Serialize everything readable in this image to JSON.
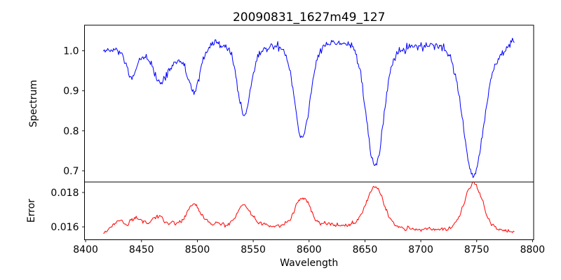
{
  "figure": {
    "title": "20090831_1627m49_127",
    "background": "#ffffff"
  },
  "panels": {
    "spectrum": {
      "ylabel": "Spectrum",
      "line_color": "#0000ff",
      "xlim": [
        8399,
        8801
      ],
      "ylim": [
        0.672,
        1.064
      ],
      "yticks": [
        {
          "value": 0.7,
          "label": "0.7"
        },
        {
          "value": 0.8,
          "label": "0.8"
        },
        {
          "value": 0.9,
          "label": "0.9"
        },
        {
          "value": 1.0,
          "label": "1.0"
        }
      ]
    },
    "error": {
      "ylabel": "Error",
      "xlabel": "Wavelength",
      "line_color": "#ff0000",
      "xlim": [
        8399,
        8801
      ],
      "ylim": [
        0.01525,
        0.01861
      ],
      "yticks": [
        {
          "value": 0.016,
          "label": "0.016"
        },
        {
          "value": 0.018,
          "label": "0.018"
        }
      ],
      "xticks": [
        {
          "value": 8400,
          "label": "8400"
        },
        {
          "value": 8450,
          "label": "8450"
        },
        {
          "value": 8500,
          "label": "8500"
        },
        {
          "value": 8550,
          "label": "8550"
        },
        {
          "value": 8600,
          "label": "8600"
        },
        {
          "value": 8650,
          "label": "8650"
        },
        {
          "value": 8700,
          "label": "8700"
        },
        {
          "value": 8750,
          "label": "8750"
        },
        {
          "value": 8800,
          "label": "8800"
        }
      ]
    }
  },
  "chart_data": [
    {
      "type": "line",
      "name": "spectrum",
      "title": "20090831_1627m49_127",
      "xlabel": "Wavelength",
      "ylabel": "Spectrum",
      "color": "#0000ff",
      "xlim": [
        8399,
        8801
      ],
      "ylim": [
        0.672,
        1.064
      ],
      "x_start": 8416,
      "x_end": 8784,
      "x_step": 0.75,
      "description": "Noisy stellar spectrum, continuum near 1.0 with broad Paschen-series absorption dips of increasing depth toward 8750",
      "model": {
        "continuum_anchors": [
          [
            8416,
            1.0
          ],
          [
            8427,
            1.0
          ],
          [
            8450,
            0.988
          ],
          [
            8458,
            0.985
          ],
          [
            8480,
            0.972
          ],
          [
            8490,
            0.978
          ],
          [
            8508,
            1.0
          ],
          [
            8516,
            1.018
          ],
          [
            8524,
            1.012
          ],
          [
            8538,
            0.995
          ],
          [
            8552,
            0.995
          ],
          [
            8566,
            1.012
          ],
          [
            8576,
            1.008
          ],
          [
            8584,
            1.0
          ],
          [
            8608,
            1.005
          ],
          [
            8618,
            1.02
          ],
          [
            8628,
            1.022
          ],
          [
            8640,
            1.015
          ],
          [
            8652,
            1.0
          ],
          [
            8668,
            1.0
          ],
          [
            8684,
            1.005
          ],
          [
            8695,
            1.01
          ],
          [
            8708,
            1.013
          ],
          [
            8722,
            1.008
          ],
          [
            8735,
            0.995
          ],
          [
            8745,
            0.99
          ],
          [
            8760,
            0.99
          ],
          [
            8770,
            0.995
          ],
          [
            8778,
            1.005
          ],
          [
            8784,
            1.035
          ]
        ],
        "absorption_lines": [
          {
            "center": 8441,
            "depth": 0.065,
            "sigma": 4.0
          },
          {
            "center": 8467,
            "depth": 0.06,
            "sigma": 5.5
          },
          {
            "center": 8497,
            "depth": 0.095,
            "sigma": 4.5
          },
          {
            "center": 8542,
            "depth": 0.155,
            "sigma": 5.5
          },
          {
            "center": 8594,
            "depth": 0.22,
            "sigma": 6.5
          },
          {
            "center": 8659,
            "depth": 0.29,
            "sigma": 7.5
          },
          {
            "center": 8747,
            "depth": 0.3,
            "sigma": 9.0
          }
        ],
        "noise_sigma": 0.005,
        "noise_persistence": 0.0,
        "seed": 12345
      },
      "sampled_points": [
        [
          8420,
          1.0
        ],
        [
          8430,
          0.985
        ],
        [
          8440,
          0.928
        ],
        [
          8450,
          0.975
        ],
        [
          8458,
          0.978
        ],
        [
          8467,
          0.924
        ],
        [
          8475,
          0.935
        ],
        [
          8483,
          0.965
        ],
        [
          8490,
          0.97
        ],
        [
          8498,
          0.906
        ],
        [
          8507,
          0.965
        ],
        [
          8515,
          1.015
        ],
        [
          8525,
          1.01
        ],
        [
          8535,
          0.96
        ],
        [
          8544,
          0.848
        ],
        [
          8555,
          0.935
        ],
        [
          8565,
          1.0
        ],
        [
          8575,
          1.008
        ],
        [
          8585,
          0.975
        ],
        [
          8592,
          0.88
        ],
        [
          8596,
          0.788
        ],
        [
          8605,
          0.9
        ],
        [
          8615,
          1.0
        ],
        [
          8625,
          1.02
        ],
        [
          8635,
          1.01
        ],
        [
          8645,
          0.965
        ],
        [
          8653,
          0.85
        ],
        [
          8660,
          0.728
        ],
        [
          8670,
          0.845
        ],
        [
          8680,
          0.95
        ],
        [
          8690,
          1.0
        ],
        [
          8700,
          1.01
        ],
        [
          8710,
          1.012
        ],
        [
          8720,
          1.0
        ],
        [
          8730,
          0.945
        ],
        [
          8740,
          0.835
        ],
        [
          8749,
          0.698
        ],
        [
          8758,
          0.79
        ],
        [
          8765,
          0.9
        ],
        [
          8772,
          0.965
        ],
        [
          8778,
          1.0
        ],
        [
          8784,
          1.04
        ]
      ]
    },
    {
      "type": "line",
      "name": "error",
      "xlabel": "Wavelength",
      "ylabel": "Error",
      "color": "#ff0000",
      "xlim": [
        8399,
        8801
      ],
      "ylim": [
        0.01525,
        0.01861
      ],
      "x_start": 8416,
      "x_end": 8784,
      "x_step": 0.75,
      "description": "Error spectrum, baseline near 0.016 with bumps at each absorption line, largest near 8660 and 8748",
      "model": {
        "continuum_anchors": [
          [
            8416,
            0.0157
          ],
          [
            8425,
            0.01595
          ],
          [
            8440,
            0.01615
          ],
          [
            8460,
            0.01615
          ],
          [
            8480,
            0.01625
          ],
          [
            8520,
            0.0162
          ],
          [
            8560,
            0.01615
          ],
          [
            8575,
            0.01605
          ],
          [
            8615,
            0.01615
          ],
          [
            8640,
            0.01605
          ],
          [
            8665,
            0.016
          ],
          [
            8695,
            0.0159
          ],
          [
            8715,
            0.0158
          ],
          [
            8745,
            0.0159
          ],
          [
            8770,
            0.01585
          ],
          [
            8784,
            0.01568
          ]
        ],
        "emission_peaks": [
          {
            "center": 8428,
            "height": 0.0003,
            "sigma": 3.0
          },
          {
            "center": 8446,
            "height": 0.0003,
            "sigma": 4.0
          },
          {
            "center": 8464,
            "height": 0.0005,
            "sigma": 4.0
          },
          {
            "center": 8497,
            "height": 0.00105,
            "sigma": 5.5
          },
          {
            "center": 8542,
            "height": 0.001,
            "sigma": 6.0
          },
          {
            "center": 8594,
            "height": 0.00165,
            "sigma": 6.5
          },
          {
            "center": 8659,
            "height": 0.00235,
            "sigma": 7.5
          },
          {
            "center": 8747,
            "height": 0.0026,
            "sigma": 8.0
          }
        ],
        "noise_sigma": 6e-05,
        "noise_persistence": 0.5,
        "seed": 67890
      },
      "sampled_points": [
        [
          8420,
          0.01575
        ],
        [
          8428,
          0.0163
        ],
        [
          8435,
          0.0163
        ],
        [
          8445,
          0.0164
        ],
        [
          8455,
          0.0164
        ],
        [
          8464,
          0.0167
        ],
        [
          8472,
          0.0164
        ],
        [
          8480,
          0.0164
        ],
        [
          8490,
          0.0167
        ],
        [
          8498,
          0.0173
        ],
        [
          8510,
          0.0168
        ],
        [
          8520,
          0.0163
        ],
        [
          8532,
          0.0167
        ],
        [
          8542,
          0.0172
        ],
        [
          8552,
          0.0167
        ],
        [
          8562,
          0.0162
        ],
        [
          8572,
          0.0161
        ],
        [
          8582,
          0.0164
        ],
        [
          8590,
          0.017
        ],
        [
          8596,
          0.0178
        ],
        [
          8605,
          0.0174
        ],
        [
          8615,
          0.0166
        ],
        [
          8625,
          0.0163
        ],
        [
          8635,
          0.0161
        ],
        [
          8645,
          0.0162
        ],
        [
          8653,
          0.0172
        ],
        [
          8660,
          0.0184
        ],
        [
          8670,
          0.0177
        ],
        [
          8680,
          0.0166
        ],
        [
          8690,
          0.0161
        ],
        [
          8700,
          0.0159
        ],
        [
          8710,
          0.0158
        ],
        [
          8720,
          0.0159
        ],
        [
          8730,
          0.0163
        ],
        [
          8740,
          0.0172
        ],
        [
          8748,
          0.0185
        ],
        [
          8756,
          0.0176
        ],
        [
          8764,
          0.0166
        ],
        [
          8772,
          0.0161
        ],
        [
          8780,
          0.0158
        ],
        [
          8784,
          0.0157
        ]
      ]
    }
  ]
}
